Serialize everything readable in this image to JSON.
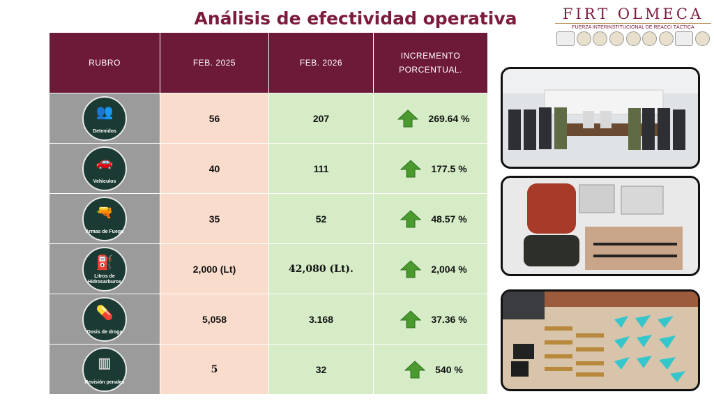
{
  "title": "Análisis de efectividad operativa",
  "brand": {
    "name": "FIRT OLMECA",
    "subtitle": "FUERZA INTERINSTITUCIONAL DE REACCI TÁCTICA",
    "seal_labels": [
      "TA BAS CO",
      "FGR",
      "FIRT"
    ]
  },
  "table": {
    "headers": [
      "RUBRO",
      "FEB. 2025",
      "FEB. 2026",
      "INCREMENTO PORCENTUAL."
    ],
    "rows": [
      {
        "icon": "detainees-icon",
        "label": "Detenidos",
        "feb2025": "56",
        "feb2026": "207",
        "increase": "269.64 %"
      },
      {
        "icon": "vehicle-icon",
        "label": "Vehículos",
        "feb2025": "40",
        "feb2026": "111",
        "increase": "177.5 %"
      },
      {
        "icon": "firearms-icon",
        "label": "Armas de Fuego",
        "feb2025": "35",
        "feb2026": "52",
        "increase": "48.57 %"
      },
      {
        "icon": "fuel-icon",
        "label": "Litros de Hidrocarburos",
        "feb2025": "2,000 (Lt)",
        "feb2026": "42,080 (Lt).",
        "increase": "2,004 %"
      },
      {
        "icon": "drugs-icon",
        "label": "Dosis de droga",
        "feb2025": "5,058",
        "feb2026": "3.168",
        "increase": "37.36 %"
      },
      {
        "icon": "prison-icon",
        "label": "Revisión penales",
        "feb2025": "5",
        "feb2026": "32",
        "increase": "540 %"
      }
    ]
  },
  "colors": {
    "header": "#6d1a38",
    "rubro_bg": "#9b9b9b",
    "col2025_bg": "#fadccd",
    "col2026_bg": "#d5ecc6",
    "arrow": "#4a9a2f",
    "icon_circle": "#1a3a33"
  },
  "photos": [
    "detainees-lineup-photo",
    "seized-items-photo",
    "seized-weapons-drugs-photo"
  ]
}
